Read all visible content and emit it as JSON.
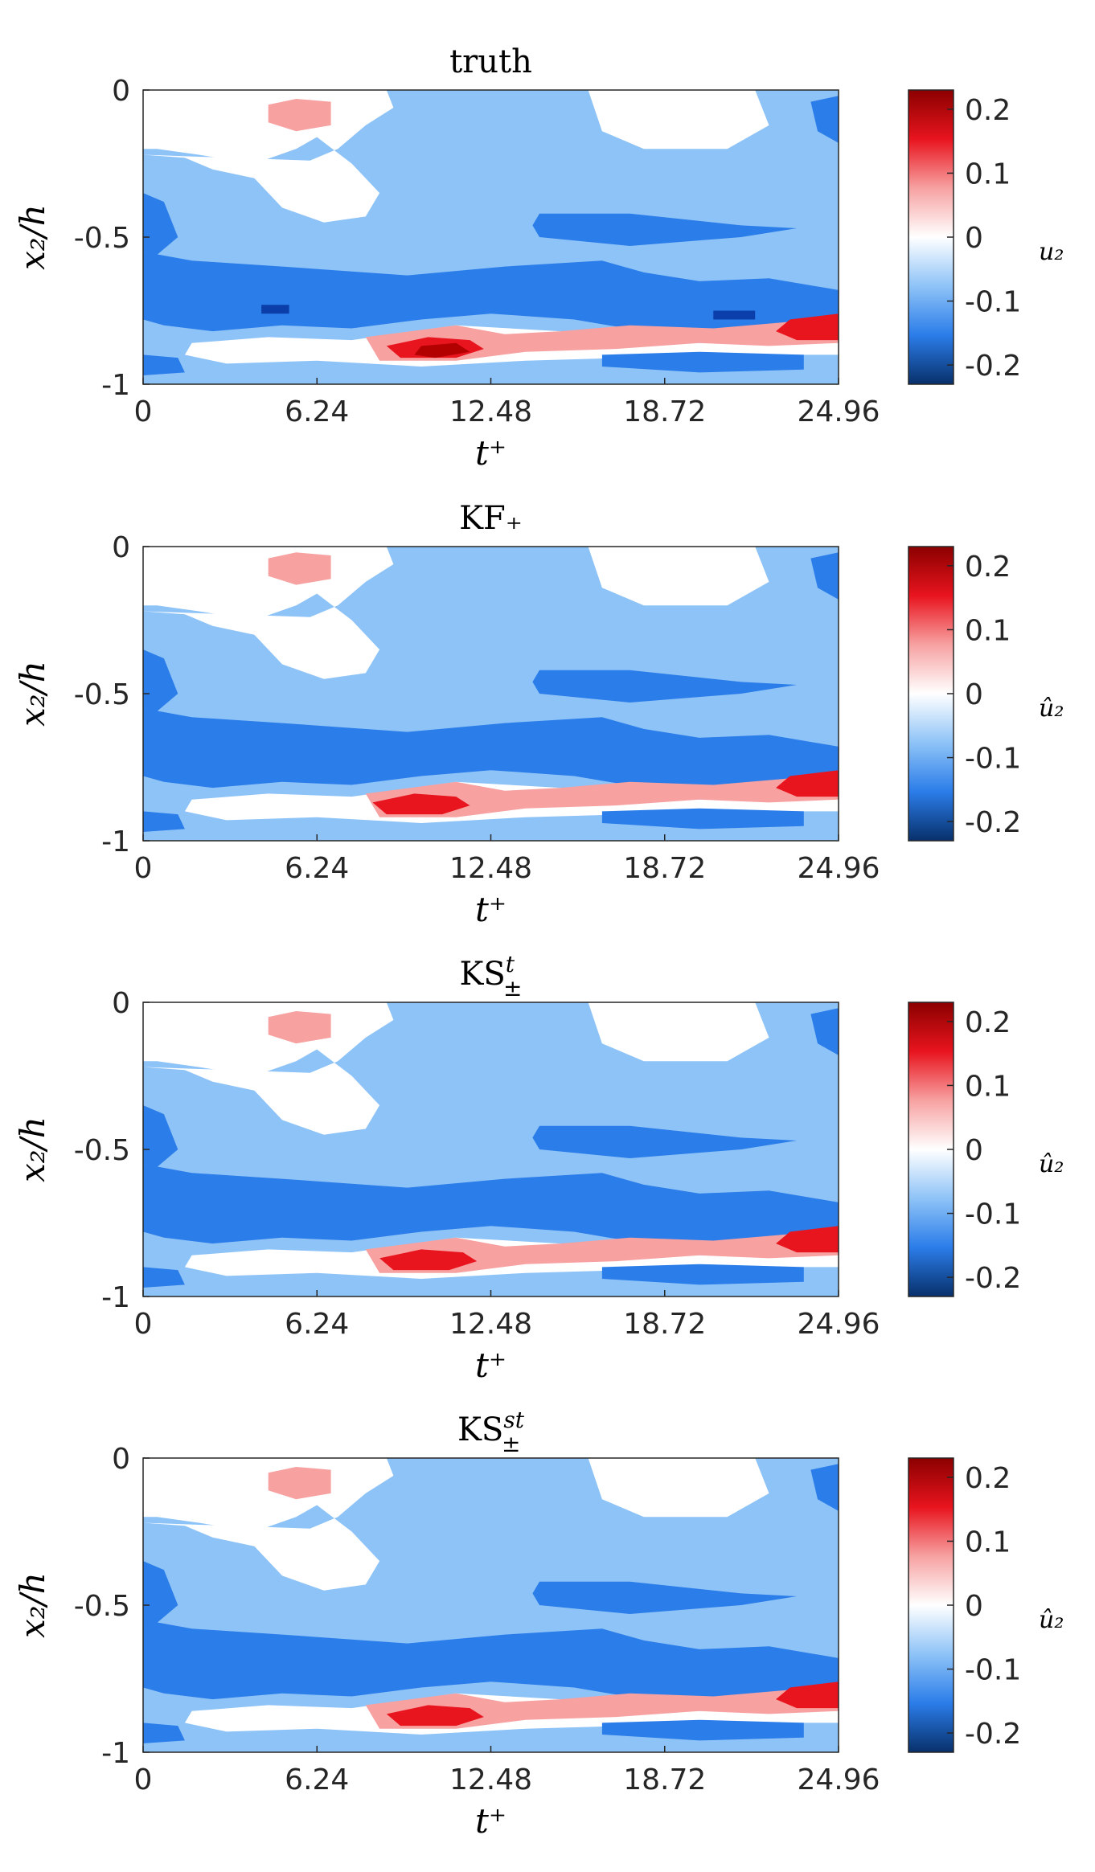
{
  "chart_data": [
    {
      "type": "heatmap",
      "title": "truth",
      "xlabel": "t⁺",
      "ylabel": "x₂/h",
      "colorbar_label": "u₂",
      "xticks": [
        "0",
        "6.24",
        "12.48",
        "18.72",
        "24.96"
      ],
      "xlim": [
        0,
        24.96
      ],
      "yticks": [
        "0",
        "-0.5",
        "-1"
      ],
      "ylim": [
        -1,
        0
      ],
      "cbar_ticks": [
        "0.2",
        "0.1",
        "0",
        "-0.1",
        "-0.2"
      ],
      "clim": [
        -0.23,
        0.23
      ],
      "colormap": [
        "#08306b",
        "#2b7de9",
        "#8ec3f7",
        "#ffffff",
        "#f7a1a1",
        "#e8141e",
        "#8b0000"
      ]
    },
    {
      "type": "heatmap",
      "title": "KF₊",
      "xlabel": "t⁺",
      "ylabel": "x₂/h",
      "colorbar_label": "û₂",
      "xticks": [
        "0",
        "6.24",
        "12.48",
        "18.72",
        "24.96"
      ],
      "xlim": [
        0,
        24.96
      ],
      "yticks": [
        "0",
        "-0.5",
        "-1"
      ],
      "ylim": [
        -1,
        0
      ],
      "cbar_ticks": [
        "0.2",
        "0.1",
        "0",
        "-0.1",
        "-0.2"
      ],
      "clim": [
        -0.23,
        0.23
      ],
      "colormap": [
        "#08306b",
        "#2b7de9",
        "#8ec3f7",
        "#ffffff",
        "#f7a1a1",
        "#e8141e",
        "#8b0000"
      ]
    },
    {
      "type": "heatmap",
      "title": "KS",
      "title_sup": "t",
      "title_sub": "±",
      "xlabel": "t⁺",
      "ylabel": "x₂/h",
      "colorbar_label": "û₂",
      "xticks": [
        "0",
        "6.24",
        "12.48",
        "18.72",
        "24.96"
      ],
      "xlim": [
        0,
        24.96
      ],
      "yticks": [
        "0",
        "-0.5",
        "-1"
      ],
      "ylim": [
        -1,
        0
      ],
      "cbar_ticks": [
        "0.2",
        "0.1",
        "0",
        "-0.1",
        "-0.2"
      ],
      "clim": [
        -0.23,
        0.23
      ],
      "colormap": [
        "#08306b",
        "#2b7de9",
        "#8ec3f7",
        "#ffffff",
        "#f7a1a1",
        "#e8141e",
        "#8b0000"
      ]
    },
    {
      "type": "heatmap",
      "title": "KS",
      "title_sup": "st",
      "title_sub": "±",
      "xlabel": "t⁺",
      "ylabel": "x₂/h",
      "colorbar_label": "û₂",
      "xticks": [
        "0",
        "6.24",
        "12.48",
        "18.72",
        "24.96"
      ],
      "xlim": [
        0,
        24.96
      ],
      "yticks": [
        "0",
        "-0.5",
        "-1"
      ],
      "ylim": [
        -1,
        0
      ],
      "cbar_ticks": [
        "0.2",
        "0.1",
        "0",
        "-0.1",
        "-0.2"
      ],
      "clim": [
        -0.23,
        0.23
      ],
      "colormap": [
        "#08306b",
        "#2b7de9",
        "#8ec3f7",
        "#ffffff",
        "#f7a1a1",
        "#e8141e",
        "#8b0000"
      ]
    }
  ]
}
